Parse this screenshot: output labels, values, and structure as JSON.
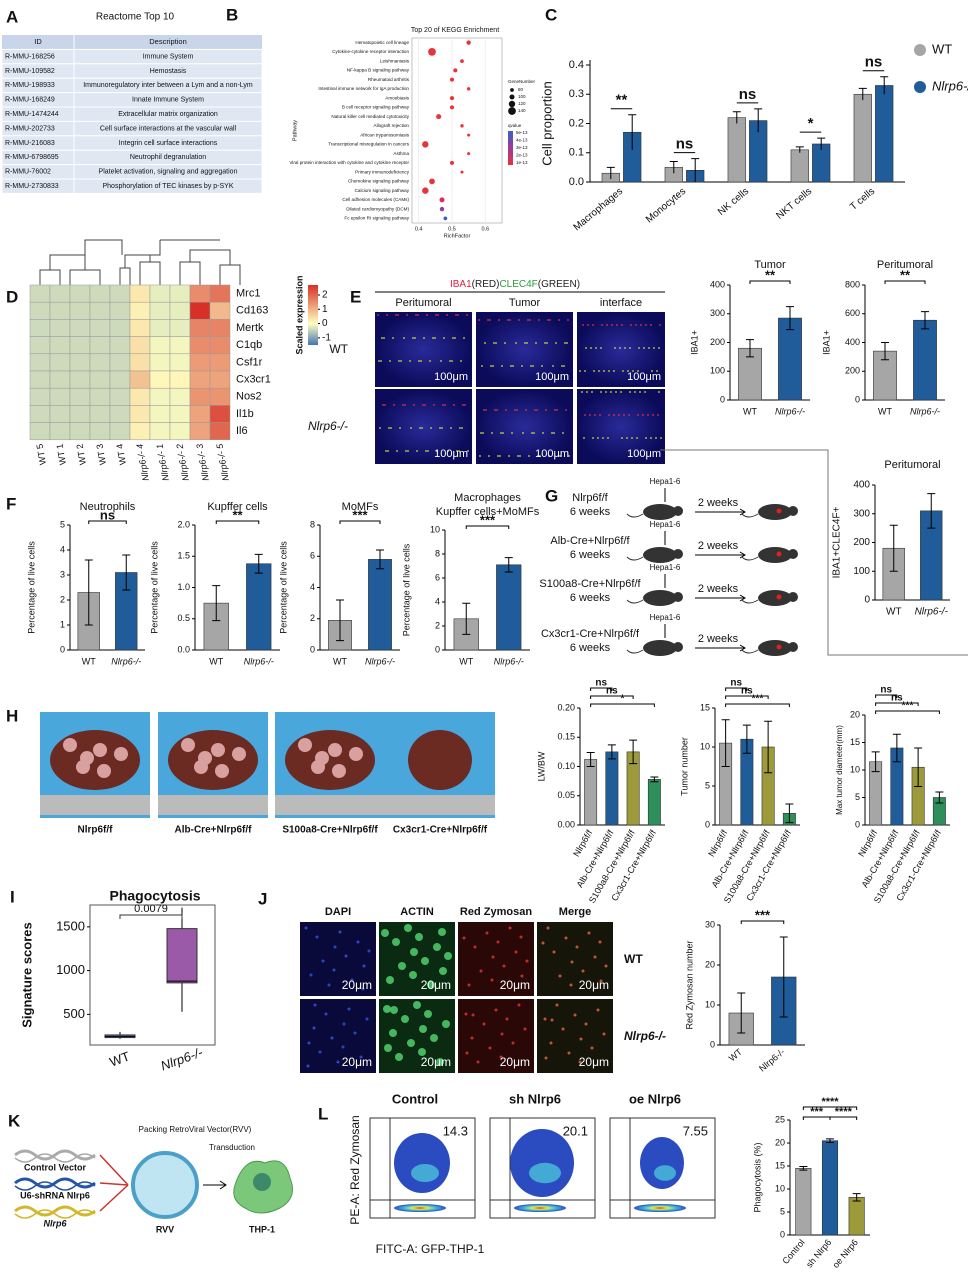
{
  "panel_labels": [
    "A",
    "B",
    "C",
    "D",
    "E",
    "F",
    "G",
    "H",
    "I",
    "J",
    "K",
    "L"
  ],
  "reactome": {
    "title": "Reactome Top 10",
    "header": [
      "ID",
      "Description"
    ],
    "rows": [
      [
        "R-MMU-168256",
        "Immune System"
      ],
      [
        "R-MMU-109582",
        "Hemostasis"
      ],
      [
        "R-MMU-198933",
        "Immunoregulatory inter between a Lym and a non-Lym"
      ],
      [
        "R-MMU-168249",
        "Innate Immune System"
      ],
      [
        "R-MMU-1474244",
        "Extracellular matrix organization"
      ],
      [
        "R-MMU-202733",
        "Cell surface interactions at the vascular wall"
      ],
      [
        "R-MMU-216083",
        "Integrin cell surface interactions"
      ],
      [
        "R-MMU-6798695",
        "Neutrophil degranulation"
      ],
      [
        "R-MMU-76002",
        "Platelet activation, signaling and aggregation"
      ],
      [
        "R-MMU-2730833",
        "Phosphorylation of TEC kinases by p-SYK"
      ]
    ]
  },
  "kegg": {
    "type": "dot",
    "title": "Top 20 of KEGG Enrichment",
    "ylabel": "Pathway",
    "xlabel": "RichFactor",
    "categories": [
      "Hematopoietic cell lineage",
      "Cytokine-cytokine receptor interaction",
      "Leishmaniasis",
      "NF-kappa B signaling pathway",
      "Rheumatoid arthritis",
      "Intestinal immune network for IgA production",
      "Amoebiasis",
      "B cell receptor signaling pathway",
      "Natural killer cell mediated cytotoxicity",
      "Allograft rejection",
      "African trypanosomiasis",
      "Transcriptional misregulation in cancers",
      "Asthma",
      "Viral protein interaction with cytokine and cytokine receptor",
      "Primary immunodeficiency",
      "Chemokine signaling pathway",
      "Calcium signaling pathway",
      "Cell adhesion molecules (CAMs)",
      "Dilated cardiomyopathy (DCM)",
      "Fc epsilon RI signaling pathway"
    ],
    "values": [
      0.55,
      0.44,
      0.53,
      0.51,
      0.5,
      0.55,
      0.5,
      0.5,
      0.46,
      0.53,
      0.55,
      0.42,
      0.55,
      0.5,
      0.53,
      0.44,
      0.42,
      0.47,
      0.47,
      0.48
    ],
    "gene_numbers": [
      90,
      140,
      80,
      85,
      85,
      75,
      85,
      85,
      100,
      75,
      70,
      120,
      70,
      85,
      70,
      110,
      120,
      100,
      90,
      80
    ],
    "colors": [
      "#e8323c",
      "#e8323c",
      "#e8323c",
      "#e8323c",
      "#e8323c",
      "#e8323c",
      "#e8323c",
      "#e8323c",
      "#e8323c",
      "#e8323c",
      "#e8323c",
      "#e8323c",
      "#e8323c",
      "#e8323c",
      "#e8323c",
      "#e8323c",
      "#e8323c",
      "#e02c5c",
      "#9b3a9b",
      "#3a5fc4"
    ],
    "xlim": [
      0.38,
      0.65
    ],
    "xticks": [
      0.4,
      0.5,
      0.6
    ],
    "size_legend_title": "GeneNumber",
    "size_legend": [
      80,
      100,
      120,
      140
    ],
    "color_legend_title": "qvalue",
    "color_legend": [
      "5e-13",
      "4e-13",
      "3e-13",
      "2e-13",
      "1e-13"
    ]
  },
  "cell_proportion": {
    "type": "bar",
    "ylabel": "Cell proportion",
    "categories": [
      "Macrophages",
      "Monocytes",
      "NK cells",
      "NKT cells",
      "T cells"
    ],
    "series": [
      {
        "name": "WT",
        "color": "#a6a6a6",
        "values": [
          0.03,
          0.05,
          0.22,
          0.11,
          0.3
        ],
        "errors": [
          0.02,
          0.02,
          0.02,
          0.01,
          0.02
        ]
      },
      {
        "name": "Nlrp6-/-",
        "color": "#1f5c99",
        "values": [
          0.17,
          0.04,
          0.21,
          0.13,
          0.33
        ],
        "errors": [
          0.06,
          0.04,
          0.04,
          0.02,
          0.03
        ]
      }
    ],
    "ylim": [
      0,
      0.4
    ],
    "yticks": [
      {
        "value": 0,
        "label": "0.0"
      },
      {
        "value": 0.1,
        "label": "0.1"
      },
      {
        "value": 0.2,
        "label": "0.2"
      },
      {
        "value": 0.3,
        "label": "0.3"
      },
      {
        "value": 0.4,
        "label": "0.4"
      }
    ],
    "significance": [
      "**",
      "ns",
      "ns",
      "*",
      "ns"
    ]
  },
  "heatmap": {
    "type": "heatmap",
    "genes": [
      "Mrc1",
      "Cd163",
      "Mertk",
      "C1qb",
      "Csf1r",
      "Cx3cr1",
      "Nos2",
      "Il1b",
      "Il6"
    ],
    "samples": [
      "WT 5",
      "WT 1",
      "WT 2",
      "WT 3",
      "WT 4",
      "Nlrp6-/- 4",
      "Nlrp6-/- 1",
      "Nlrp6-/- 2",
      "Nlrp6-/- 3",
      "Nlrp6-/- 5"
    ],
    "values": [
      [
        -0.4,
        -0.4,
        -0.4,
        -0.4,
        -0.4,
        0.3,
        -0.2,
        -0.2,
        1.5,
        1.8
      ],
      [
        -0.4,
        -0.4,
        -0.4,
        -0.4,
        -0.4,
        0.2,
        -0.2,
        -0.2,
        2.7,
        0.9
      ],
      [
        -0.4,
        -0.4,
        -0.4,
        -0.4,
        -0.4,
        0.3,
        -0.2,
        -0.2,
        1.6,
        1.6
      ],
      [
        -0.4,
        -0.4,
        -0.4,
        -0.4,
        -0.4,
        0.4,
        -0.1,
        -0.1,
        1.5,
        1.5
      ],
      [
        -0.4,
        -0.4,
        -0.4,
        -0.4,
        -0.4,
        0.4,
        -0.1,
        -0.1,
        1.3,
        1.3
      ],
      [
        -0.4,
        -0.4,
        -0.4,
        -0.4,
        -0.4,
        0.8,
        0.1,
        0.1,
        1.2,
        1.2
      ],
      [
        -0.4,
        -0.4,
        -0.4,
        -0.4,
        -0.4,
        0.3,
        -0.1,
        -0.1,
        1.4,
        1.4
      ],
      [
        -0.4,
        -0.4,
        -0.4,
        -0.4,
        -0.4,
        0.3,
        -0.1,
        -0.1,
        1.2,
        2.3
      ],
      [
        -0.4,
        -0.4,
        -0.4,
        -0.4,
        -0.4,
        0.2,
        -0.1,
        -0.1,
        1.2,
        2.0
      ]
    ],
    "colorbar_title": "Scaled expression",
    "zlim": [
      -1.5,
      2.7
    ],
    "zticks": [
      -1,
      0,
      1,
      2
    ]
  },
  "staining": {
    "title": [
      "IBA1",
      "(RED)",
      "CLEC4F",
      "(GREEN)"
    ],
    "columns": [
      "Peritumoral",
      "Tumor",
      "interface"
    ],
    "rows": [
      "WT",
      "Nlrp6-/-"
    ],
    "scale": "100μm"
  },
  "iba1_tumor": {
    "type": "bar",
    "title": "Tumor",
    "ylabel": "IBA1+",
    "categories": [
      "WT",
      "Nlrp6-/-"
    ],
    "values": [
      180,
      285
    ],
    "errors": [
      30,
      40
    ],
    "colors": [
      "#a6a6a6",
      "#1f5c99"
    ],
    "ylim": [
      0,
      400
    ],
    "yticks": [
      0,
      100,
      200,
      300,
      400
    ],
    "significance": [
      "**"
    ]
  },
  "iba1_peritumoral": {
    "type": "bar",
    "title": "Peritumoral",
    "ylabel": "IBA1+",
    "categories": [
      "WT",
      "Nlrp6-/-"
    ],
    "values": [
      340,
      555
    ],
    "errors": [
      60,
      60
    ],
    "colors": [
      "#a6a6a6",
      "#1f5c99"
    ],
    "ylim": [
      0,
      800
    ],
    "yticks": [
      0,
      200,
      400,
      600,
      800
    ],
    "significance": [
      "**"
    ]
  },
  "iba1_clec4f": {
    "type": "bar",
    "title": "Peritumoral",
    "ylabel": "IBA1+CLEC4F+",
    "categories": [
      "WT",
      "Nlrp6-/-"
    ],
    "values": [
      180,
      310
    ],
    "errors": [
      80,
      60
    ],
    "colors": [
      "#a6a6a6",
      "#1f5c99"
    ],
    "ylim": [
      0,
      400
    ],
    "yticks": [
      0,
      100,
      200,
      300,
      400
    ]
  },
  "neutrophils": {
    "type": "bar",
    "title": "Neutrophils",
    "ylabel": "Percentage of live cells",
    "categories": [
      "WT",
      "Nlrp6-/-"
    ],
    "values": [
      2.3,
      3.1
    ],
    "errors": [
      1.3,
      0.7
    ],
    "colors": [
      "#a6a6a6",
      "#1f5c99"
    ],
    "ylim": [
      0,
      5
    ],
    "yticks": [
      0,
      1,
      2,
      3,
      4,
      5
    ],
    "significance": [
      "ns"
    ]
  },
  "kupffer": {
    "type": "bar",
    "title": "Kupffer cells",
    "ylabel": "Percentage of live cells",
    "categories": [
      "WT",
      "Nlrp6-/-"
    ],
    "values": [
      0.75,
      1.38
    ],
    "errors": [
      0.28,
      0.15
    ],
    "colors": [
      "#a6a6a6",
      "#1f5c99"
    ],
    "ylim": [
      0,
      2
    ],
    "yticks": [
      {
        "value": 0,
        "label": "0.0"
      },
      {
        "value": 0.5,
        "label": "0.5"
      },
      {
        "value": 1,
        "label": "1.0"
      },
      {
        "value": 1.5,
        "label": "1.5"
      },
      {
        "value": 2,
        "label": "2.0"
      }
    ],
    "significance": [
      "**"
    ]
  },
  "momfs": {
    "type": "bar",
    "title": "MoMFs",
    "ylabel": "Percentage of live cells",
    "categories": [
      "WT",
      "Nlrp6-/-"
    ],
    "values": [
      1.9,
      5.8
    ],
    "errors": [
      1.3,
      0.6
    ],
    "colors": [
      "#a6a6a6",
      "#1f5c99"
    ],
    "ylim": [
      0,
      8
    ],
    "yticks": [
      0,
      2,
      4,
      6,
      8
    ],
    "significance": [
      "***"
    ]
  },
  "macrophages": {
    "type": "bar",
    "title": [
      "Macrophages",
      "Kupffer cells+MoMFs"
    ],
    "ylabel": "Percentage of live cells",
    "categories": [
      "WT",
      "Nlrp6-/-"
    ],
    "values": [
      2.6,
      7.1
    ],
    "errors": [
      1.3,
      0.6
    ],
    "colors": [
      "#a6a6a6",
      "#1f5c99"
    ],
    "ylim": [
      0,
      10
    ],
    "yticks": [
      0,
      2,
      4,
      6,
      8,
      10
    ],
    "significance": [
      "***"
    ]
  },
  "model": {
    "cells": "Hepa1-6",
    "duration": "2 weeks",
    "age": "6 weeks",
    "genotypes": [
      "Nlrp6f/f",
      "Alb-Cre+Nlrp6f/f",
      "S100a8-Cre+Nlrp6f/f",
      "Cx3cr1-Cre+Nlrp6f/f"
    ]
  },
  "lw_bw": {
    "type": "bar",
    "ylabel": "LW/BW",
    "categories": [
      "Nlrp6f/f",
      "Alb-Cre+Nlrp6f/f",
      "S100a8-Cre+Nlrp6f/f",
      "Cx3cr1-Cre+Nlrp6f/f"
    ],
    "values": [
      0.112,
      0.125,
      0.125,
      0.078
    ],
    "errors": [
      0.012,
      0.012,
      0.02,
      0.004
    ],
    "colors": [
      "#a6a6a6",
      "#1f5c99",
      "#9c9a3b",
      "#2f8f5b"
    ],
    "ylim": [
      0,
      0.2
    ],
    "yticks": [
      {
        "value": 0,
        "label": "0.00"
      },
      {
        "value": 0.05,
        "label": "0.05"
      },
      {
        "value": 0.1,
        "label": "0.10"
      },
      {
        "value": 0.15,
        "label": "0.15"
      },
      {
        "value": 0.2,
        "label": "0.20"
      }
    ],
    "significance": [
      "ns",
      "ns",
      "*"
    ]
  },
  "tumor_number": {
    "type": "bar",
    "ylabel": "Tumor number",
    "categories": [
      "Nlrp6f/f",
      "Alb-Cre+Nlrp6f/f",
      "S100a8-Cre+Nlrp6f/f",
      "Cx3cr1-Cre+Nlrp6f/f"
    ],
    "values": [
      10.5,
      11,
      10,
      1.5
    ],
    "errors": [
      3,
      1.8,
      3.3,
      1.2
    ],
    "colors": [
      "#a6a6a6",
      "#1f5c99",
      "#9c9a3b",
      "#2f8f5b"
    ],
    "ylim": [
      0,
      15
    ],
    "yticks": [
      0,
      5,
      10,
      15
    ],
    "significance": [
      "ns",
      "ns",
      "***"
    ]
  },
  "tumor_diameter": {
    "type": "bar",
    "ylabel": "Max tumor diameter(mm)",
    "categories": [
      "Nlrp6f/f",
      "Alb-Cre+Nlrp6f/f",
      "S100a8-Cre+Nlrp6f/f",
      "Cx3cr1-Cre+Nlrp6f/f"
    ],
    "values": [
      11.5,
      14,
      10.5,
      5
    ],
    "errors": [
      1.8,
      2.5,
      3.5,
      1
    ],
    "colors": [
      "#a6a6a6",
      "#1f5c99",
      "#9c9a3b",
      "#2f8f5b"
    ],
    "ylim": [
      0,
      20
    ],
    "yticks": [
      0,
      5,
      10,
      15,
      20
    ],
    "significance": [
      "ns",
      "ns",
      "***"
    ]
  },
  "phagocytosis_scores": {
    "type": "box",
    "title": "Phagocytosis",
    "ylabel": "Signature scores",
    "categories": [
      "WT",
      "Nlrp6-/-"
    ],
    "colors": [
      "#5b7fbf",
      "#9b5aa8"
    ],
    "boxes": [
      {
        "min": 220,
        "q1": 235,
        "median": 248,
        "q3": 265,
        "max": 300
      },
      {
        "min": 530,
        "q1": 860,
        "median": 880,
        "q3": 1480,
        "max": 1720
      }
    ],
    "pvalue": "0.0079",
    "ylim": [
      150,
      1750
    ],
    "yticks": [
      500,
      1000,
      1500
    ]
  },
  "zymosan_images": {
    "channels": [
      "DAPI",
      "ACTIN",
      "Red Zymosan",
      "Merge"
    ],
    "rows": [
      "WT",
      "Nlrp6-/-"
    ],
    "scale": "20μm"
  },
  "zymosan_number": {
    "type": "bar",
    "ylabel": "Red Zymosan number",
    "categories": [
      "WT",
      "Nlrp6-/-"
    ],
    "values": [
      8,
      17
    ],
    "errors": [
      5,
      10
    ],
    "colors": [
      "#a6a6a6",
      "#1f5c99"
    ],
    "ylim": [
      0,
      30
    ],
    "yticks": [
      0,
      10,
      20,
      30
    ],
    "significance": [
      "***"
    ]
  },
  "vector": {
    "title": "Packing RetroViral Vector(RVV)",
    "step": "Transduction",
    "constructs": [
      "Control Vector",
      "U6-shRNA Nlrp6",
      "Nlrp6"
    ],
    "particle": "RVV",
    "target": "THP-1"
  },
  "flow_plots": {
    "ylabel": "PE-A: Red Zymosan",
    "xlabel": "FITC-A: GFP-THP-1",
    "titles": [
      "Control",
      "sh Nlrp6",
      "oe Nlrp6"
    ],
    "values": [
      14.3,
      20.1,
      7.55
    ]
  },
  "phagocytosis_pct": {
    "type": "bar",
    "ylabel": "Phagocytosis (%)",
    "categories": [
      "Control",
      "sh Nlrp6",
      "oe Nlrp6"
    ],
    "values": [
      14.5,
      20.5,
      8.2
    ],
    "errors": [
      0.4,
      0.4,
      0.8
    ],
    "colors": [
      "#a6a6a6",
      "#1f5c99",
      "#9c9a3b"
    ],
    "ylim": [
      0,
      25
    ],
    "yticks": [
      0,
      5,
      10,
      15,
      20,
      25
    ],
    "significance": [
      "****",
      "***",
      "****"
    ]
  }
}
